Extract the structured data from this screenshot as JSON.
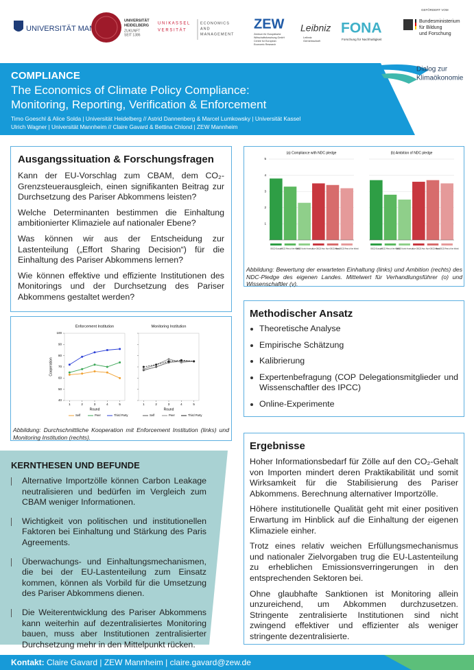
{
  "logos": {
    "mannheim": "UNIVERSITÄT MANNHEIM",
    "heidelberg": [
      "UNIVERSITÄT",
      "HEIDELBERG",
      "ZUKUNFT",
      "SEIT 1386"
    ],
    "kassel": [
      "U N I K A S S E L",
      "V E R S I T Ä T"
    ],
    "kassel_dept": [
      "ECONOMICS",
      "AND",
      "MANAGEMENT"
    ],
    "zew": "ZEW",
    "zew_sub": [
      "Zentrum für Europäische",
      "Wirtschaftsforschung GmbH",
      "Centre for European",
      "Economic Research"
    ],
    "leibniz": "Leibniz",
    "leibniz_sub": [
      "Leibniz",
      "Gemeinschaft"
    ],
    "fona": "FONA",
    "fona_sub": "Forschung für Nachhaltigkeit",
    "bmbf_head": "GEFÖRDERT VOM",
    "bmbf": [
      "Bundesministerium",
      "für Bildung",
      "und Forschung"
    ],
    "dialog": [
      "Dialog zur",
      "Klimaökonomie"
    ]
  },
  "header": {
    "kicker": "COMPLIANCE",
    "title": [
      "The Economics of Climate Policy Compliance:",
      "Monitoring, Reporting, Verification & Enforcement"
    ],
    "authors": [
      "Timo Goeschl & Alice Solda | Universität Heidelberg // Astrid Dannenberg & Marcel Lumkowsky | Universität Kassel",
      "Ulrich Wagner | Universität Mannheim // Claire Gavard & Bettina Chlond | ZEW Mannheim"
    ]
  },
  "intro": {
    "heading": "Ausgangssituation & Forschungsfragen",
    "paragraphs": [
      "Kann der EU-Vorschlag zum CBAM, dem CO₂-Grenzsteuerausgleich, einen signifikanten Beitrag zur Durchsetzung des Pariser Abkommens leisten?",
      "Welche Determinanten bestimmen die Einhaltung ambitionierter Klimaziele auf nationaler Ebene?",
      "Was können wir aus der Entscheidung zur Lastenteilung („Effort Sharing Decision“) für die Einhaltung des Pariser Abkommens lernen?",
      "Wie können effektive und effiziente Institutionen des Monitorings und der Durchsetzung des Pariser Abkommens gestaltet werden?"
    ]
  },
  "figures": {
    "cooperation": {
      "type": "line",
      "xlabel": "Round",
      "ylabel": "Cooperation",
      "x": [
        1,
        2,
        3,
        4,
        5
      ],
      "xlim": [
        0.6,
        5.4
      ],
      "xticks": [
        1,
        2,
        3,
        4,
        5
      ],
      "ylim": [
        40,
        100
      ],
      "yticks": [
        40,
        50,
        60,
        70,
        80,
        90,
        100
      ],
      "panels": [
        {
          "title": "Enforcement Institution",
          "series": [
            {
              "name": "Self",
              "color": "#f0a030",
              "values": [
                63,
                64,
                66,
                65,
                60
              ]
            },
            {
              "name": "Peer",
              "color": "#3aa655",
              "values": [
                65,
                68,
                72,
                70,
                74
              ]
            },
            {
              "name": "Third Party",
              "color": "#2b3fd6",
              "values": [
                72,
                79,
                83,
                85,
                86
              ]
            }
          ]
        },
        {
          "title": "Monitoring Institution",
          "series": [
            {
              "name": "Self",
              "color": "#555555",
              "values": [
                67,
                70,
                74,
                75,
                75
              ]
            },
            {
              "name": "Peer",
              "color": "#888888",
              "values": [
                68,
                72,
                77,
                74,
                75
              ]
            },
            {
              "name": "Third Party",
              "color": "#222222",
              "values": [
                70,
                72,
                75,
                76,
                75
              ]
            }
          ]
        }
      ],
      "caption": "Abbildung: Durchschnittliche Kooperation mit Enforcement Institution (links) und Monitoring Institution (rechts)."
    },
    "ndc": {
      "type": "bar",
      "categories": [
        "OECD Europe",
        "OECD Rest of the World",
        "OECD North America",
        "Non-OECD Asia",
        "Non-OECD Africa",
        "Non-OECD Rest of the World"
      ],
      "colors": [
        "#2e9e45",
        "#5bb85f",
        "#8fcf8a",
        "#c8373f",
        "#d76c6c",
        "#e59a9a"
      ],
      "ylim": [
        0,
        5
      ],
      "yticks": [
        1,
        2,
        3,
        4,
        5
      ],
      "panels": [
        {
          "title": "(a) Compliance with NDC pledge",
          "values": [
            3.8,
            3.3,
            2.3,
            3.5,
            3.4,
            3.2
          ]
        },
        {
          "title": "(b) Ambition of NDC pledge",
          "values": [
            3.7,
            2.8,
            2.5,
            3.6,
            3.7,
            3.5
          ]
        }
      ],
      "caption": "Abbildung: Bewertung der erwarteten Einhaltung (links) und Ambition (rechts) des NDC-Pledge des eigenen Landes. Mittelwert für Verhandlungsführer (o) und Wissenschaftler (v)."
    }
  },
  "theses": {
    "heading": "KERNTHESEN UND BEFUNDE",
    "items": [
      "Alternative Importzölle können Carbon Leakage neutralisieren und bedürfen im Vergleich zum CBAM weniger Informationen.",
      "Wichtigkeit von politischen und institutionellen Faktoren bei Einhaltung und Stärkung des Paris Agreements.",
      "Überwachungs- und Einhaltungsmechanismen, die bei der EU-Lastenteilung zum Einsatz kommen, können als Vorbild für die Umsetzung des Pariser Abkommens dienen.",
      "Die Weiterentwicklung des Pariser Abkommens kann weiterhin auf dezentralisiertes Monitoring bauen, muss aber Institutionen zentralisierter Durchsetzung mehr in den Mittelpunkt rücken."
    ]
  },
  "methods": {
    "heading": "Methodischer Ansatz",
    "items": [
      "Theoretische Analyse",
      "Empirische Schätzung",
      "Kalibrierung",
      "Expertenbefragung (COP Delegationsmitglieder und Wissenschaftler des IPCC)",
      "Online-Experimente"
    ]
  },
  "results": {
    "heading": "Ergebnisse",
    "paragraphs": [
      "Hoher Informationsbedarf für Zölle auf den CO₂-Gehalt von Importen mindert deren Praktikabilität und somit Wirksamkeit für die Stabilisierung des Pariser Abkommens. Berechnung alternativer Importzölle.",
      "Höhere institutionelle Qualität geht mit einer positiven Erwartung im Hinblick auf die Einhaltung der eigenen Klimaziele einher.",
      "Trotz eines relativ weichen Erfüllungsmechanismus und nationaler Zielvorgaben trug die EU-Lastenteilung zu erheblichen Emissionsverringerungen in den entsprechenden Sektoren bei.",
      "Ohne glaubhafte Sanktionen ist Monitoring allein unzureichend, um Abkommen durchzusetzen. Stringente zentralisierte Institutionen sind nicht zwingend effektiver und effizienter als weniger stringente dezentralisierte."
    ]
  },
  "footer": {
    "label": "Kontakt:",
    "text": "Claire Gavard | ZEW Mannheim | claire.gavard@zew.de"
  }
}
